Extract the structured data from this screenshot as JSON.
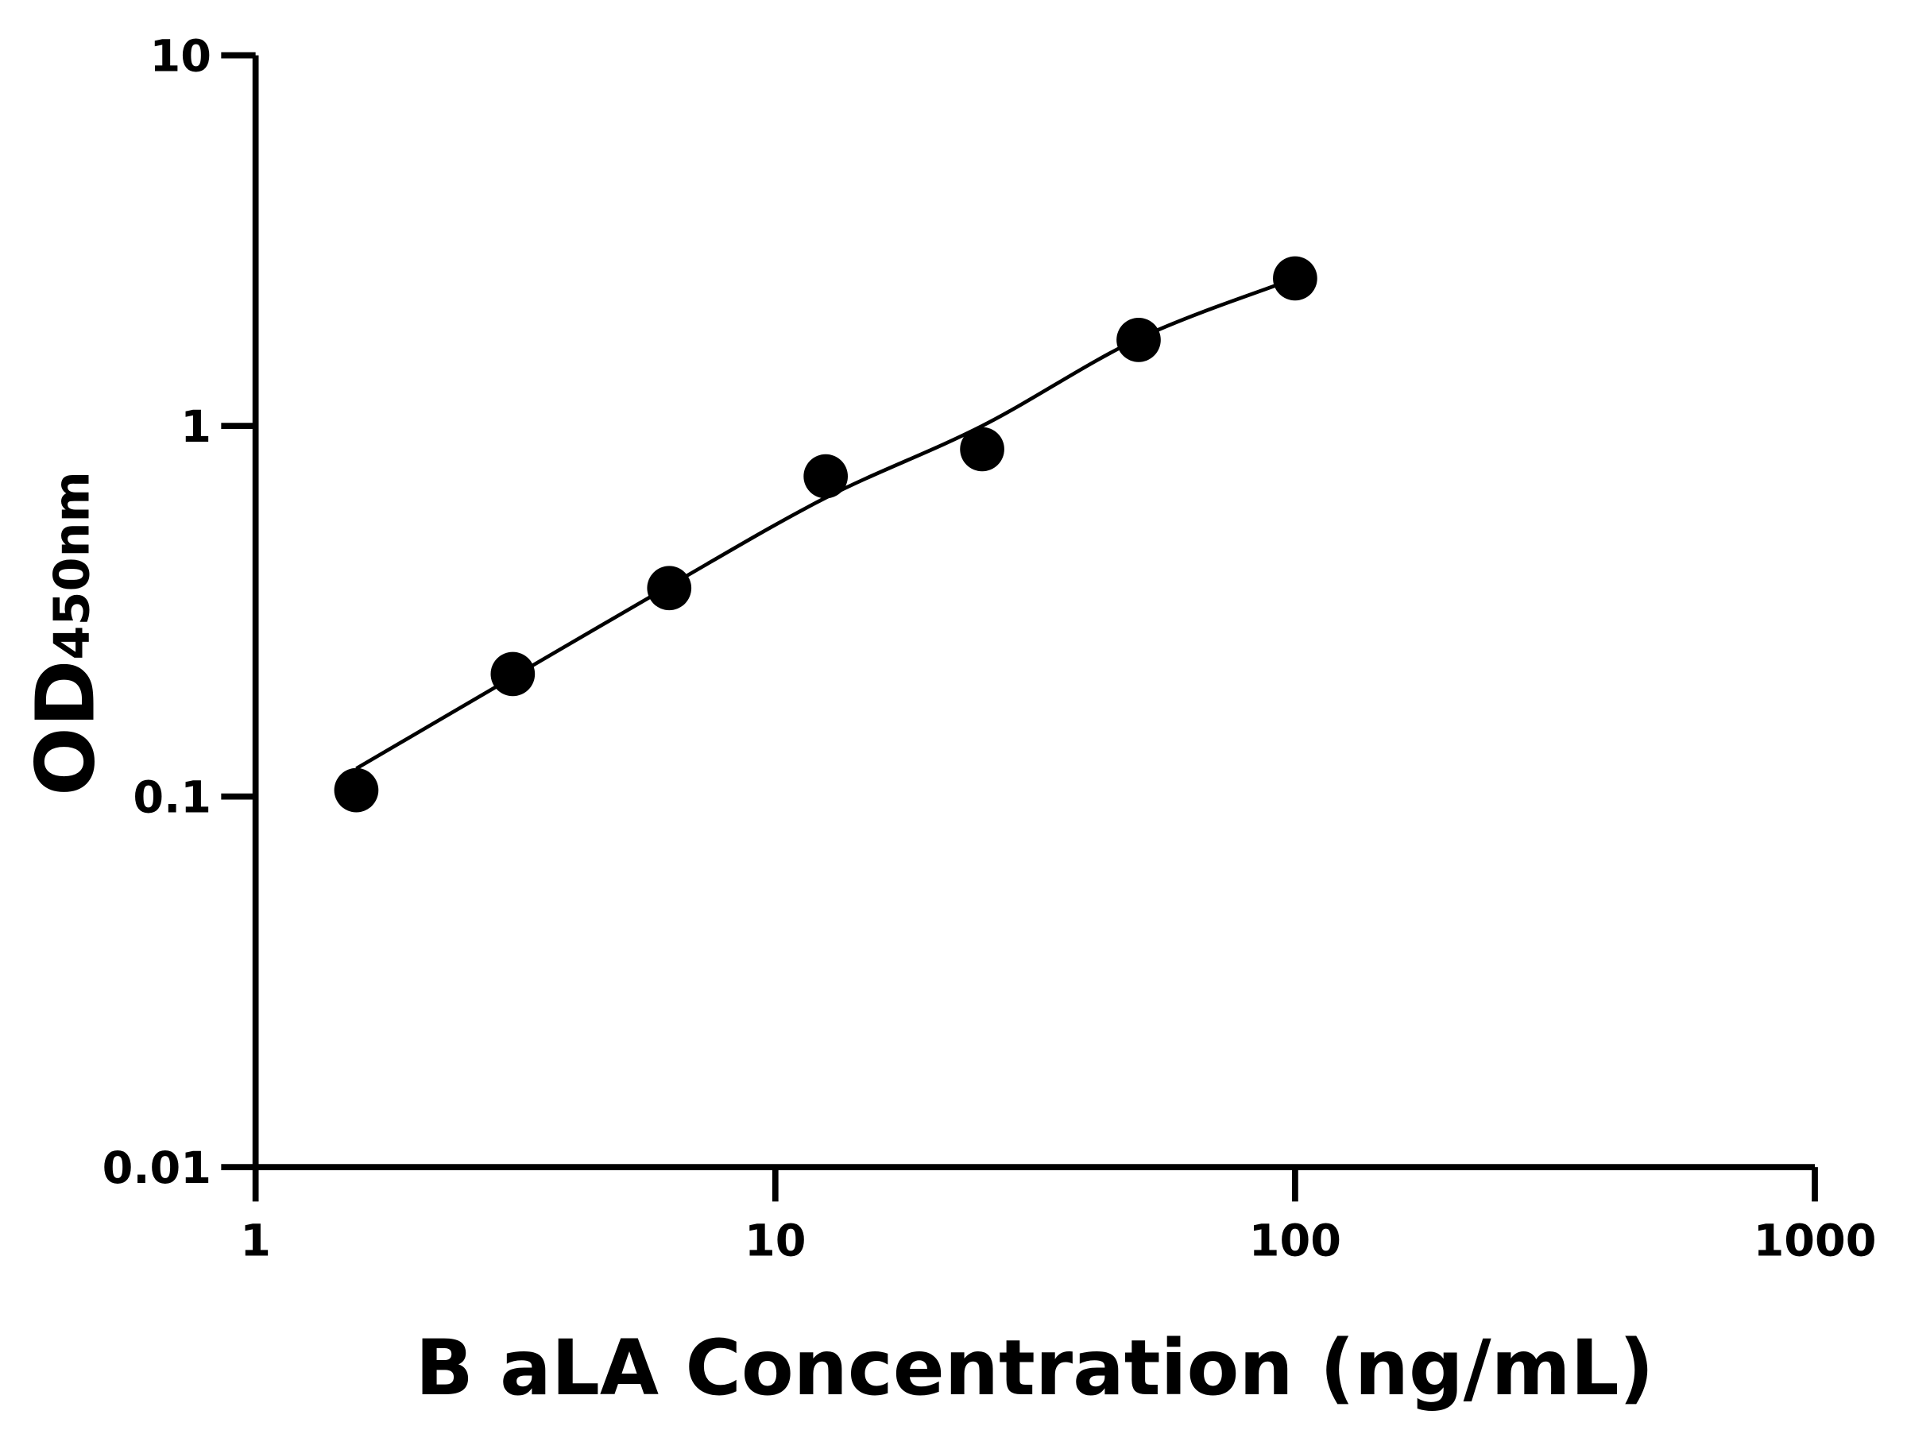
{
  "chart_data": {
    "type": "scatter",
    "title": "",
    "xlabel": "B aLA Concentration (ng/mL)",
    "ylabel_main": "OD",
    "ylabel_sub": "450nm",
    "x_scale": "log",
    "y_scale": "log",
    "xlim": [
      1,
      1000
    ],
    "ylim": [
      0.01,
      10
    ],
    "x_ticks": [
      "1",
      "10",
      "100",
      "1000"
    ],
    "y_ticks": [
      "0.01",
      "0.1",
      "1",
      "10"
    ],
    "grid": false,
    "legend": "none",
    "series": [
      {
        "x": [
          1.5625,
          3.125,
          6.25,
          12.5,
          25,
          50,
          100
        ],
        "y": [
          0.104,
          0.214,
          0.365,
          0.731,
          0.865,
          1.706,
          2.5
        ],
        "marker": "filled-circle",
        "color": "#000000"
      }
    ],
    "fit_curve": {
      "x": [
        1.5625,
        3.125,
        6.25,
        12.5,
        25,
        50,
        100
      ],
      "y": [
        0.119,
        0.21,
        0.37,
        0.64,
        1.0,
        1.72,
        2.5
      ],
      "color": "#000000"
    }
  }
}
